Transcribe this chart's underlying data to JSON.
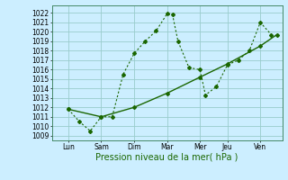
{
  "xlabel": "Pression niveau de la mer( hPa )",
  "background_color": "#cceeff",
  "grid_color": "#99cccc",
  "line_color": "#1a6600",
  "xlim": [
    0.0,
    21.0
  ],
  "ylim": [
    1008.5,
    1022.8
  ],
  "yticks": [
    1009,
    1010,
    1011,
    1012,
    1013,
    1014,
    1015,
    1016,
    1017,
    1018,
    1019,
    1020,
    1021,
    1022
  ],
  "xtick_labels": [
    "Lun",
    "Sam",
    "Dim",
    "Mar",
    "Mer",
    "Jeu",
    "Ven"
  ],
  "xtick_positions": [
    1.5,
    4.5,
    7.5,
    10.5,
    13.5,
    16.0,
    19.0
  ],
  "line1_x": [
    1.5,
    2.5,
    3.5,
    4.5,
    5.5,
    6.5,
    7.5,
    8.5,
    9.5,
    10.5,
    11.0,
    11.5,
    12.5,
    13.5,
    14.0,
    15.0,
    16.0,
    17.0,
    18.0,
    19.0,
    20.0
  ],
  "line1_y": [
    1011.8,
    1010.5,
    1009.5,
    1011.0,
    1011.0,
    1015.5,
    1017.7,
    1019.0,
    1020.1,
    1021.9,
    1021.8,
    1019.0,
    1016.2,
    1016.0,
    1013.3,
    1014.2,
    1016.5,
    1017.0,
    1018.0,
    1021.0,
    1019.7
  ],
  "line2_x": [
    1.5,
    4.5,
    7.5,
    10.5,
    13.5,
    16.0,
    19.0,
    20.5
  ],
  "line2_y": [
    1011.8,
    1011.0,
    1012.0,
    1013.5,
    1015.2,
    1016.6,
    1018.5,
    1019.7
  ],
  "xlabel_fontsize": 7.0,
  "tick_fontsize": 5.5
}
